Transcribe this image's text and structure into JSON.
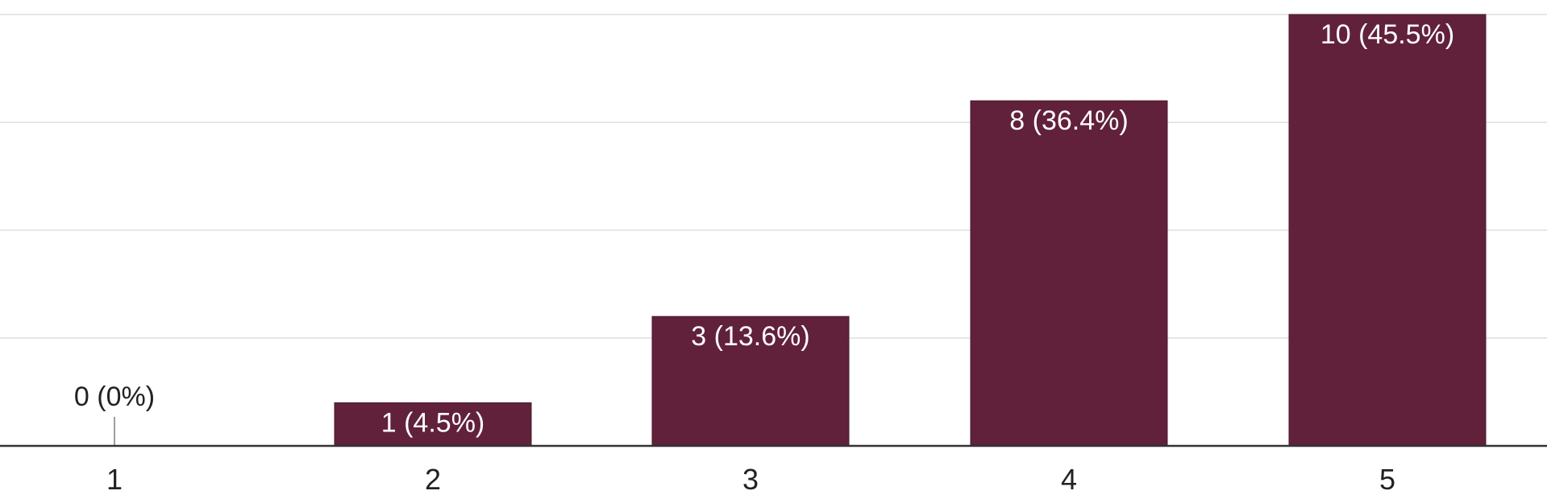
{
  "chart_data": {
    "type": "bar",
    "categories": [
      "1",
      "2",
      "3",
      "4",
      "5"
    ],
    "values": [
      0,
      1,
      3,
      8,
      10
    ],
    "data_labels": [
      "0 (0%)",
      "1 (4.5%)",
      "3 (13.6%)",
      "8 (36.4%)",
      "10 (45.5%)"
    ],
    "ylim": [
      0,
      10
    ],
    "gridlines": [
      0,
      2.5,
      5,
      7.5,
      10
    ],
    "grid": true,
    "legend": "none",
    "colors": {
      "bar": "#61213b",
      "grid": "#e6e6e6",
      "axis": "#333333"
    }
  }
}
